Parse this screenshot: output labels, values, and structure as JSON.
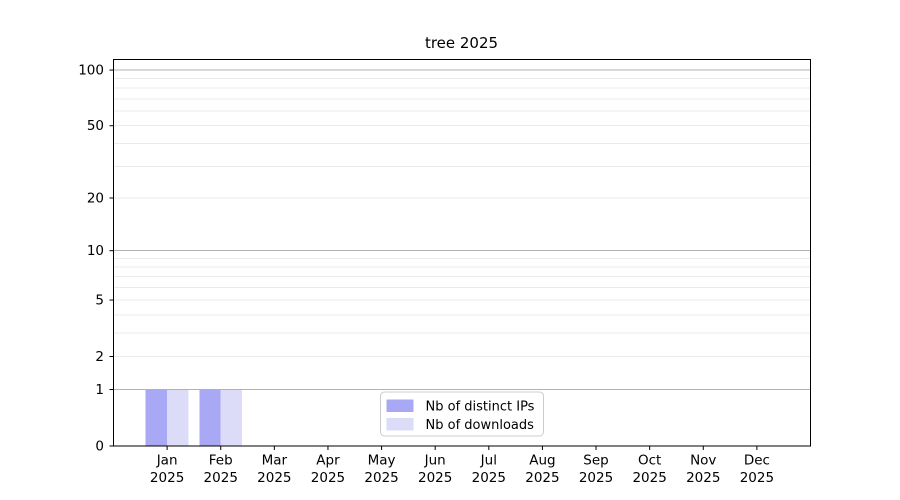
{
  "chart_data": {
    "type": "bar",
    "title": "tree 2025",
    "categories": [
      "Jan 2025",
      "Feb 2025",
      "Mar 2025",
      "Apr 2025",
      "May 2025",
      "Jun 2025",
      "Jul 2025",
      "Aug 2025",
      "Sep 2025",
      "Oct 2025",
      "Nov 2025",
      "Dec 2025"
    ],
    "series": [
      {
        "name": "Nb of distinct IPs",
        "color": "#a8a8f4",
        "values": [
          1,
          1,
          0,
          0,
          0,
          0,
          0,
          0,
          0,
          0,
          0,
          0
        ]
      },
      {
        "name": "Nb of downloads",
        "color": "#dcdcf9",
        "values": [
          1,
          1,
          0,
          0,
          0,
          0,
          0,
          0,
          0,
          0,
          0,
          0
        ]
      }
    ],
    "xlabel": "",
    "ylabel": "",
    "y_scale": "log1p",
    "ylim": [
      0,
      114
    ],
    "xlim": [
      -1,
      12
    ],
    "yticks": [
      0,
      1,
      2,
      5,
      10,
      20,
      50,
      100
    ],
    "bar_width": 0.4,
    "grid": {
      "major_values": [
        1,
        10,
        100
      ],
      "minor_values": [
        2,
        3,
        4,
        5,
        6,
        7,
        8,
        9,
        20,
        30,
        40,
        50,
        60,
        70,
        80,
        90
      ],
      "major_color": "#b2b2b2",
      "minor_color": "#ebebeb"
    },
    "legend": {
      "position": "lower center",
      "border_color": "#cccccc",
      "background": "#ffffff"
    },
    "axis_color": "#000000",
    "text_color": "#000000"
  }
}
